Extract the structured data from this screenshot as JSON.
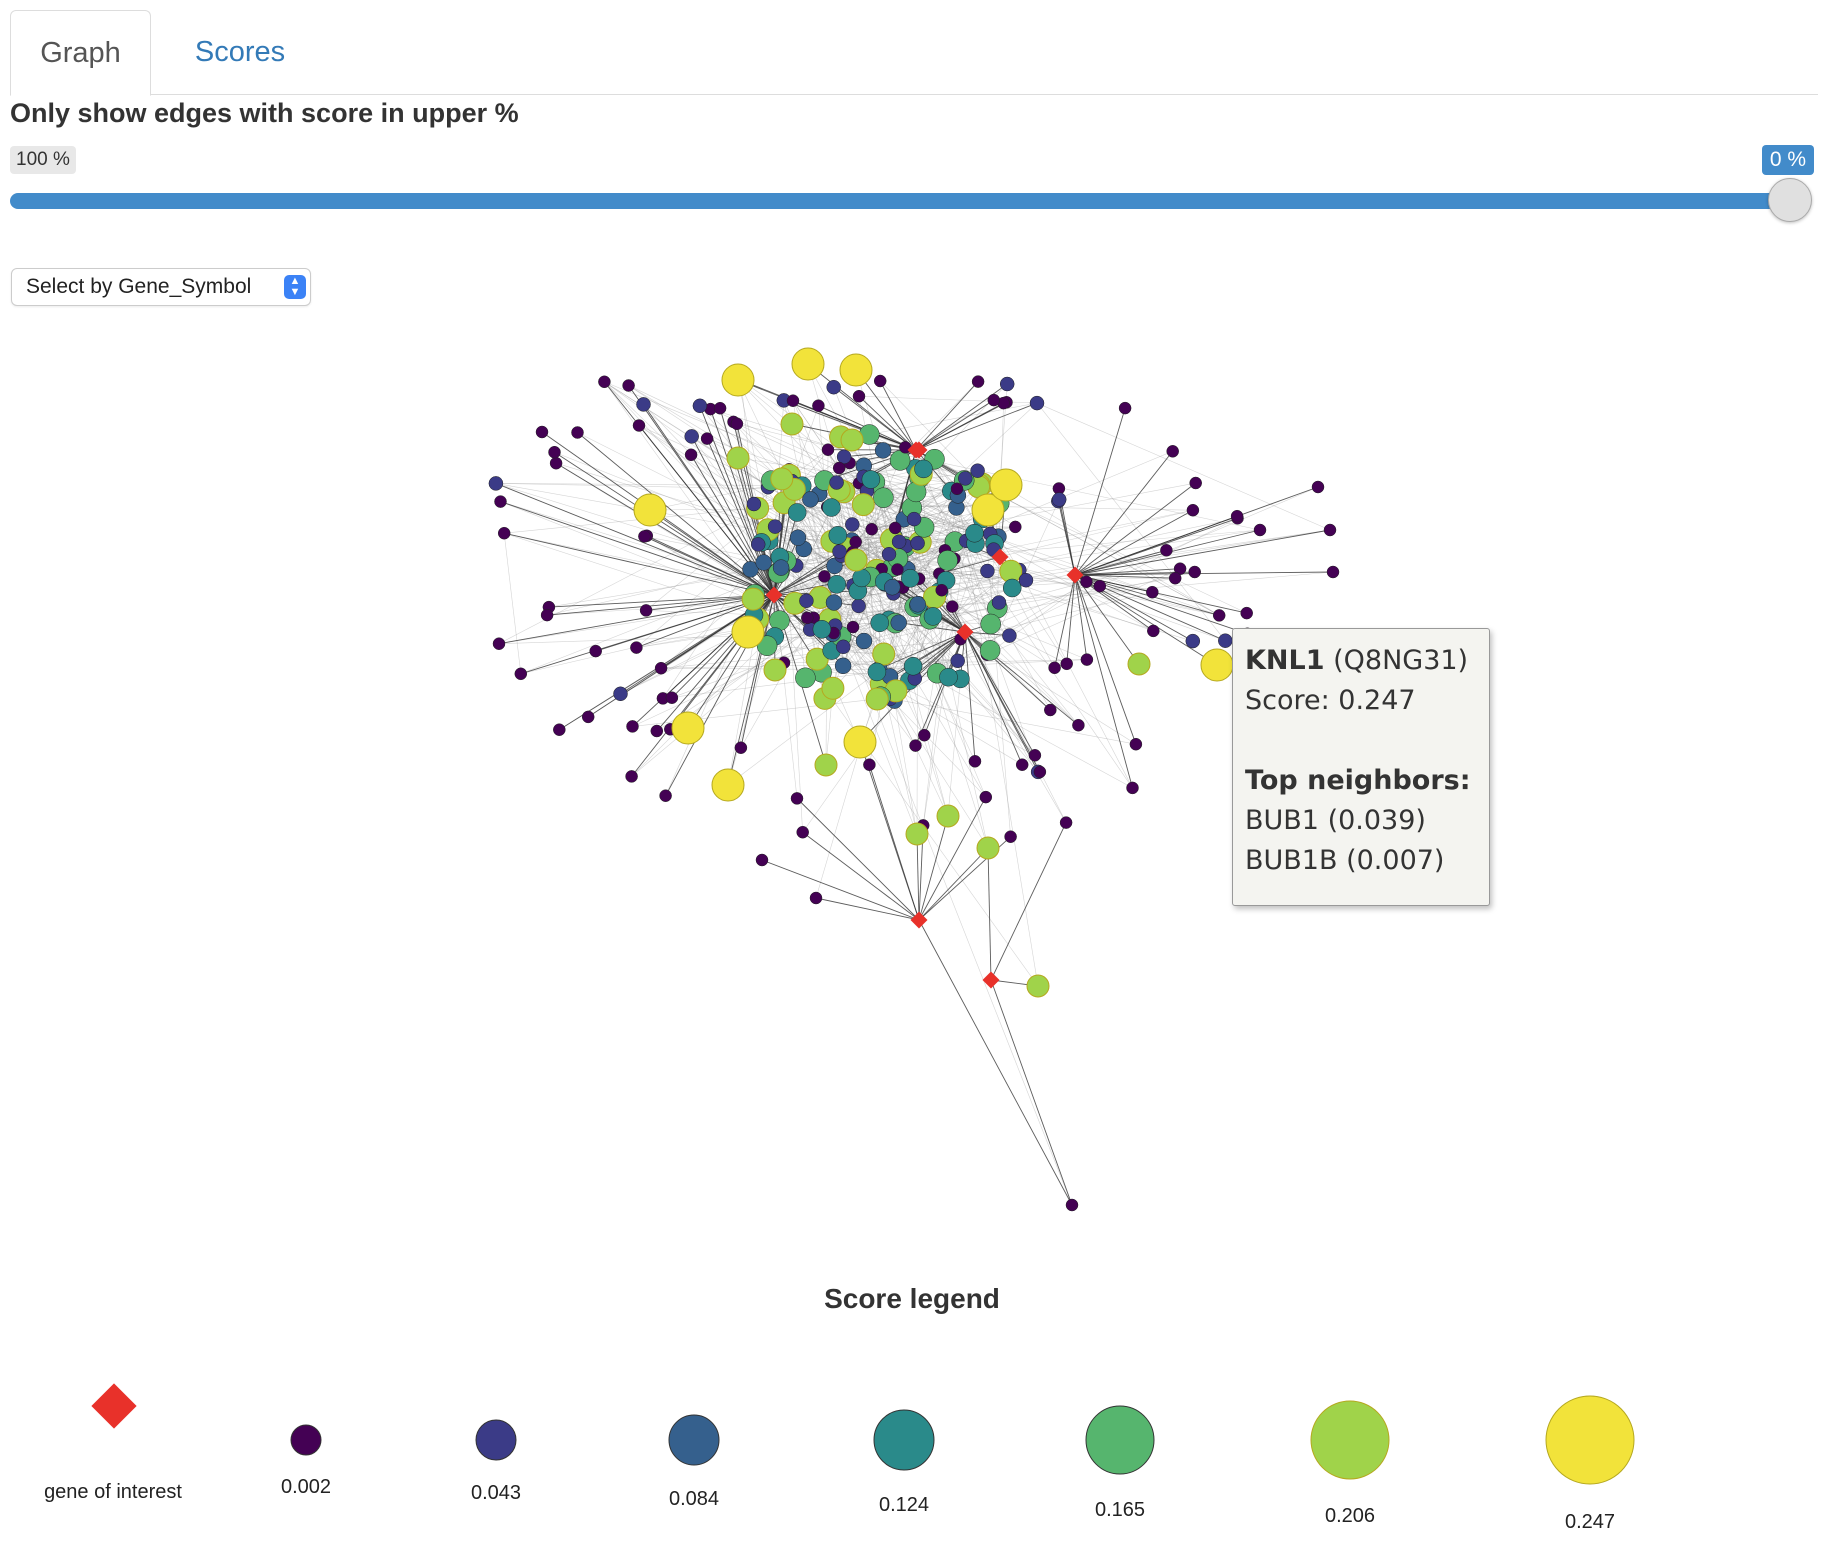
{
  "tabs": [
    {
      "label": "Graph",
      "active": true
    },
    {
      "label": "Scores",
      "active": false
    }
  ],
  "slider": {
    "title": "Only show edges with score in upper %",
    "min_label": "100 %",
    "max_label": "0 %",
    "value_percent": 0
  },
  "select": {
    "label": "Select by Gene_Symbol"
  },
  "colors": {
    "gene_of_interest": "#e8312a",
    "tab_active_text": "#555555",
    "tab_link": "#337ab7",
    "slider_bar": "#428bca",
    "score_scale": [
      "#440154",
      "#3b3b87",
      "#35608d",
      "#2a8a8a",
      "#56b56e",
      "#a0d34a",
      "#f2e33a"
    ]
  },
  "tooltip": {
    "gene": "KNL1",
    "uniprot": "(Q8NG31)",
    "score_line": "Score: 0.247",
    "neighbors_title": "Top neighbors:",
    "neighbors": [
      "BUB1 (0.039)",
      "BUB1B (0.007)"
    ]
  },
  "legend": {
    "title": "Score legend",
    "gene_of_interest_label": "gene of interest",
    "scores": [
      "0.002",
      "0.043",
      "0.084",
      "0.124",
      "0.165",
      "0.206",
      "0.247"
    ]
  }
}
